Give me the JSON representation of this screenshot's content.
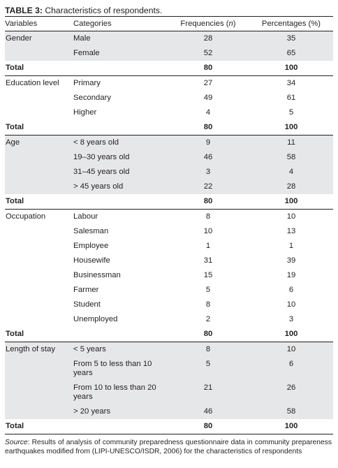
{
  "caption": {
    "label": "TABLE 3:",
    "text": " Characteristics of respondents."
  },
  "headers": [
    "Variables",
    "Categories",
    "Frequencies (n)",
    "Percentages (%)"
  ],
  "groups": [
    {
      "variable": "Gender",
      "rows": [
        [
          "Male",
          "28",
          "35"
        ],
        [
          "Female",
          "52",
          "65"
        ]
      ],
      "total": [
        "Total",
        "80",
        "100"
      ]
    },
    {
      "variable": "Education level",
      "rows": [
        [
          "Primary",
          "27",
          "34"
        ],
        [
          "Secondary",
          "49",
          "61"
        ],
        [
          "Higher",
          "4",
          "5"
        ]
      ],
      "total": [
        "Total",
        "80",
        "100"
      ]
    },
    {
      "variable": "Age",
      "rows": [
        [
          "< 8 years old",
          "9",
          "11"
        ],
        [
          "19–30 years old",
          "46",
          "58"
        ],
        [
          "31–45 years old",
          "3",
          "4"
        ],
        [
          "> 45 years old",
          "22",
          "28"
        ]
      ],
      "total": [
        "Total",
        "80",
        "100"
      ]
    },
    {
      "variable": "Occupation",
      "rows": [
        [
          "Labour",
          "8",
          "10"
        ],
        [
          "Salesman",
          "10",
          "13"
        ],
        [
          "Employee",
          "1",
          "1"
        ],
        [
          "Housewife",
          "31",
          "39"
        ],
        [
          "Businessman",
          "15",
          "19"
        ],
        [
          "Farmer",
          "5",
          "6"
        ],
        [
          "Student",
          "8",
          "10"
        ],
        [
          "Unemployed",
          "2",
          "3"
        ]
      ],
      "total": [
        "Total",
        "80",
        "100"
      ]
    },
    {
      "variable": "Length of stay",
      "rows": [
        [
          "< 5 years",
          "8",
          "10"
        ],
        [
          "From 5 to less than 10 years",
          "5",
          "6"
        ],
        [
          "From 10 to less than 20 years",
          "21",
          "26"
        ],
        [
          "> 20 years",
          "46",
          "58"
        ]
      ],
      "total": [
        "Total",
        "80",
        "100"
      ]
    }
  ],
  "source": {
    "label": "Source",
    "text": ": Results of analysis of community preparedness questionnaire data in community prepareness earthquakes modified from (LIPI-UNESCO/ISDR, 2006) for the characteristics of respondents"
  },
  "colors": {
    "shade": "#e6e7e8",
    "text": "#231f20"
  }
}
